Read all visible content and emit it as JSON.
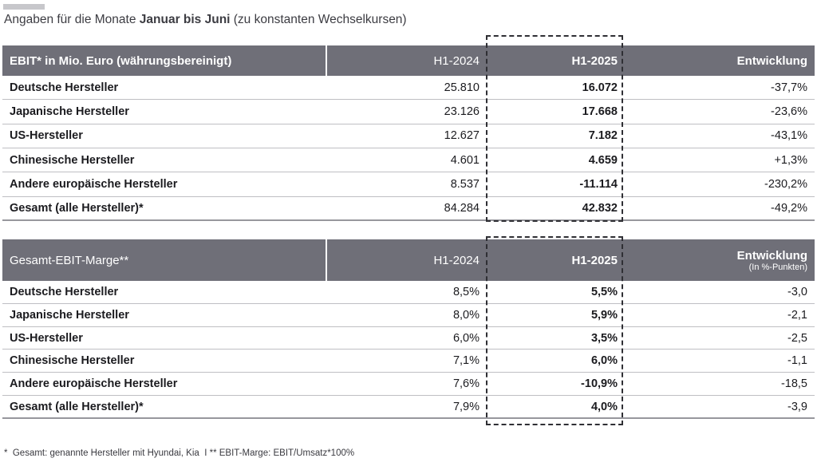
{
  "page": {
    "title": {
      "prefix": "Angaben für die Monate ",
      "bold": "Januar bis Juni",
      "suffix": " (zu konstanten Wechselkursen)"
    },
    "footnote": "*  Gesamt: genannte Hersteller mit Hyundai, Kia  I ** EBIT-Marge: EBIT/Umsatz*100%"
  },
  "colors": {
    "header_bg": "#6F6F78",
    "header_text": "#FFFFFF",
    "row_separator": "#BFBFC3",
    "table_bottom_border": "#97979D",
    "dashed_highlight": "#2F2F34",
    "body_text": "#1B1B1F"
  },
  "table1": {
    "title_bold": "EBIT* in Mio. Euro",
    "title_normal": " (währungsbereinigt)",
    "col_h1_2024": "H1-2024",
    "col_h1_2025": "H1-2025",
    "col_entwicklung": "Entwicklung",
    "rows": [
      {
        "label": "Deutsche Hersteller",
        "h1_2024": "25.810",
        "h1_2025": "16.072",
        "entwicklung": "-37,7%"
      },
      {
        "label": "Japanische Hersteller",
        "h1_2024": "23.126",
        "h1_2025": "17.668",
        "entwicklung": "-23,6%"
      },
      {
        "label": "US-Hersteller",
        "h1_2024": "12.627",
        "h1_2025": "7.182",
        "entwicklung": "-43,1%"
      },
      {
        "label": "Chinesische Hersteller",
        "h1_2024": "4.601",
        "h1_2025": "4.659",
        "entwicklung": "+1,3%"
      },
      {
        "label": "Andere europäische Hersteller",
        "h1_2024": "8.537",
        "h1_2025": "-11.114",
        "entwicklung": "-230,2%"
      },
      {
        "label": "Gesamt (alle Hersteller)*",
        "h1_2024": "84.284",
        "h1_2025": "42.832",
        "entwicklung": "-49,2%"
      }
    ]
  },
  "table2": {
    "title": "Gesamt-EBIT-Marge**",
    "col_h1_2024": "H1-2024",
    "col_h1_2025": "H1-2025",
    "col_entwicklung": "Entwicklung",
    "col_entwicklung_sub": "(In %-Punkten)",
    "rows": [
      {
        "label": "Deutsche Hersteller",
        "h1_2024": "8,5%",
        "h1_2025": "5,5%",
        "entwicklung": "-3,0"
      },
      {
        "label": "Japanische Hersteller",
        "h1_2024": "8,0%",
        "h1_2025": "5,9%",
        "entwicklung": "-2,1"
      },
      {
        "label": "US-Hersteller",
        "h1_2024": "6,0%",
        "h1_2025": "3,5%",
        "entwicklung": "-2,5"
      },
      {
        "label": "Chinesische Hersteller",
        "h1_2024": "7,1%",
        "h1_2025": "6,0%",
        "entwicklung": "-1,1"
      },
      {
        "label": "Andere europäische Hersteller",
        "h1_2024": "7,6%",
        "h1_2025": "-10,9%",
        "entwicklung": "-18,5"
      },
      {
        "label": "Gesamt (alle Hersteller)*",
        "h1_2024": "7,9%",
        "h1_2025": "4,0%",
        "entwicklung": "-3,9"
      }
    ]
  },
  "chart_data": [
    {
      "type": "table",
      "title": "EBIT* in Mio. Euro (währungsbereinigt)",
      "columns": [
        "H1-2024",
        "H1-2025",
        "Entwicklung"
      ],
      "categories": [
        "Deutsche Hersteller",
        "Japanische Hersteller",
        "US-Hersteller",
        "Chinesische Hersteller",
        "Andere europäische Hersteller",
        "Gesamt (alle Hersteller)*"
      ],
      "series": [
        {
          "name": "H1-2024",
          "values": [
            25810,
            23126,
            12627,
            4601,
            8537,
            84284
          ]
        },
        {
          "name": "H1-2025",
          "values": [
            16072,
            17668,
            7182,
            4659,
            -11114,
            42832
          ]
        },
        {
          "name": "Entwicklung (%)",
          "values": [
            -37.7,
            -23.6,
            -43.1,
            1.3,
            -230.2,
            -49.2
          ]
        }
      ]
    },
    {
      "type": "table",
      "title": "Gesamt-EBIT-Marge**",
      "columns": [
        "H1-2024",
        "H1-2025",
        "Entwicklung (In %-Punkten)"
      ],
      "categories": [
        "Deutsche Hersteller",
        "Japanische Hersteller",
        "US-Hersteller",
        "Chinesische Hersteller",
        "Andere europäische Hersteller",
        "Gesamt (alle Hersteller)*"
      ],
      "series": [
        {
          "name": "H1-2024 (%)",
          "values": [
            8.5,
            8.0,
            6.0,
            7.1,
            7.6,
            7.9
          ]
        },
        {
          "name": "H1-2025 (%)",
          "values": [
            5.5,
            5.9,
            3.5,
            6.0,
            -10.9,
            4.0
          ]
        },
        {
          "name": "Entwicklung (%-Punkte)",
          "values": [
            -3.0,
            -2.1,
            -2.5,
            -1.1,
            -18.5,
            -3.9
          ]
        }
      ]
    }
  ]
}
